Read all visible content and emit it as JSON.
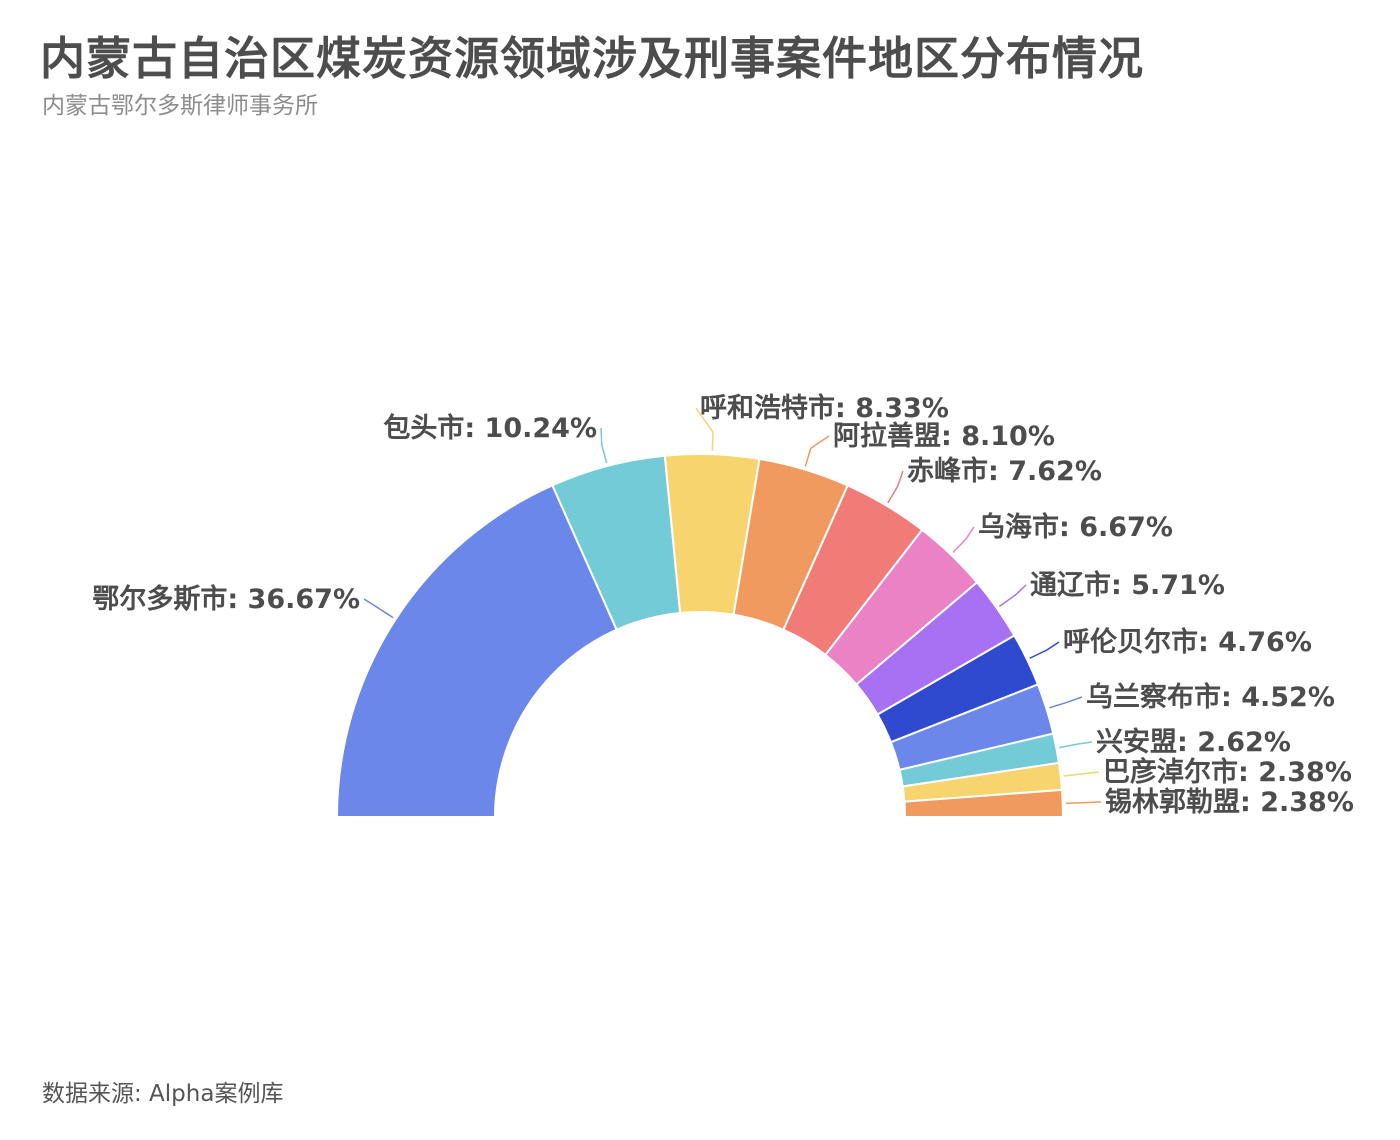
{
  "title": "内蒙古自治区煤炭资源领域涉及刑事案件地区分布情况",
  "subtitle": "内蒙古鄂尔多斯律师事务所",
  "source": "数据来源: Alpha案例库",
  "chart_data": {
    "type": "pie",
    "variant": "half-donut",
    "categories": [
      "鄂尔多斯市",
      "包头市",
      "呼和浩特市",
      "阿拉善盟",
      "赤峰市",
      "乌海市",
      "通辽市",
      "呼伦贝尔市",
      "乌兰察布市",
      "兴安盟",
      "巴彦淖尔市",
      "锡林郭勒盟"
    ],
    "values": [
      36.67,
      10.24,
      8.33,
      8.1,
      7.62,
      6.67,
      5.71,
      4.76,
      4.52,
      2.62,
      2.38,
      2.38
    ],
    "labels": [
      "鄂尔多斯市: 36.67%",
      "包头市: 10.24%",
      "呼和浩特市: 8.33%",
      "阿拉善盟: 8.10%",
      "赤峰市: 7.62%",
      "乌海市: 6.67%",
      "通辽市: 5.71%",
      "呼伦贝尔市: 4.76%",
      "乌兰察布市: 4.52%",
      "兴安盟: 2.62%",
      "巴彦淖尔市: 2.38%",
      "锡林郭勒盟: 2.38%"
    ],
    "colors": [
      "#6b87ea",
      "#72cbd6",
      "#f7d46e",
      "#f19a60",
      "#f07b77",
      "#ea82c5",
      "#a870f2",
      "#2f49cf",
      "#6b87ea",
      "#72cbd6",
      "#f7d46e",
      "#f19a60"
    ]
  }
}
